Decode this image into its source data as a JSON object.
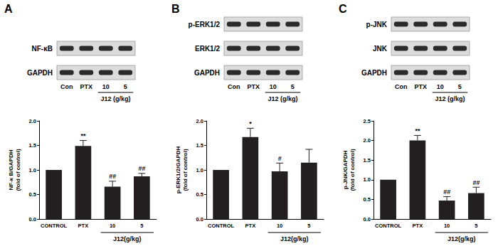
{
  "chart_data": [
    {
      "type": "bar",
      "title": "A",
      "color": "#231f20",
      "blot": {
        "rows": [
          "NF-κB",
          "GAPDH"
        ],
        "lanes": [
          "Con",
          "PTX",
          "10",
          "5"
        ],
        "group": {
          "label": "J12 (g/kg)",
          "lanes": [
            "10",
            "5"
          ]
        }
      },
      "categories": [
        "CONTROL",
        "PTX",
        "10",
        "5"
      ],
      "x_group": {
        "label": "J12(g/kg)",
        "categories": [
          "10",
          "5"
        ]
      },
      "y_label": "NF-κ B/GAPDH\n(fold of control)",
      "values": [
        1.0,
        1.49,
        0.66,
        0.87
      ],
      "errors": [
        0,
        0.11,
        0.11,
        0.06
      ],
      "significance": [
        null,
        "**",
        "##",
        "##"
      ],
      "ylim": [
        0,
        2.0
      ],
      "yticks": [
        {
          "value": 0,
          "label": "0.0"
        },
        0.5,
        {
          "value": 1.0,
          "label": "1.0"
        },
        1.5,
        {
          "value": 2.0,
          "label": "2.0"
        }
      ]
    },
    {
      "type": "bar",
      "title": "B",
      "color": "#231f20",
      "blot": {
        "rows": [
          "p-ERK1/2",
          "ERK1/2",
          "GAPDH"
        ],
        "lanes": [
          "Con",
          "PTX",
          "10",
          "5"
        ],
        "group": {
          "label": "J12 (g/kg)",
          "lanes": [
            "10",
            "5"
          ]
        }
      },
      "categories": [
        "CONTROL",
        "PTX",
        "10",
        "5"
      ],
      "x_group": {
        "label": "J12(g/kg)",
        "categories": [
          "10",
          "5"
        ]
      },
      "y_label": "p-ERK1/2/GAPDH\n(fold of control)",
      "values": [
        1.0,
        1.67,
        0.97,
        1.15
      ],
      "errors": [
        0,
        0.18,
        0.17,
        0.27
      ],
      "significance": [
        null,
        "*",
        "#",
        null
      ],
      "ylim": [
        0,
        2.0
      ],
      "yticks": [
        {
          "value": 0,
          "label": "0.0"
        },
        0.5,
        {
          "value": 1.0,
          "label": "1.0"
        },
        1.5,
        {
          "value": 2.0,
          "label": "2.0"
        }
      ]
    },
    {
      "type": "bar",
      "title": "C",
      "color": "#231f20",
      "blot": {
        "rows": [
          "p-JNK",
          "JNK",
          "GAPDH"
        ],
        "lanes": [
          "Con",
          "PTX",
          "10",
          "5"
        ],
        "group": {
          "label": "J12 (g/kg)",
          "lanes": [
            "10",
            "5"
          ]
        }
      },
      "categories": [
        "CONTROL",
        "PTX",
        "10",
        "5"
      ],
      "x_group": {
        "label": "J12(g/kg)",
        "categories": [
          "10",
          "5"
        ]
      },
      "y_label": "p-JNK/GAPDH\n(fold of control)",
      "values": [
        1.0,
        2.0,
        0.47,
        0.66
      ],
      "errors": [
        0,
        0.13,
        0.1,
        0.15
      ],
      "significance": [
        null,
        "**",
        "##",
        "##"
      ],
      "ylim": [
        0,
        2.5
      ],
      "yticks": [
        {
          "value": 0,
          "label": "0.0"
        },
        0.5,
        {
          "value": 1.0,
          "label": "1.0"
        },
        1.5,
        {
          "value": 2.0,
          "label": "2.0"
        },
        2.5
      ]
    }
  ]
}
